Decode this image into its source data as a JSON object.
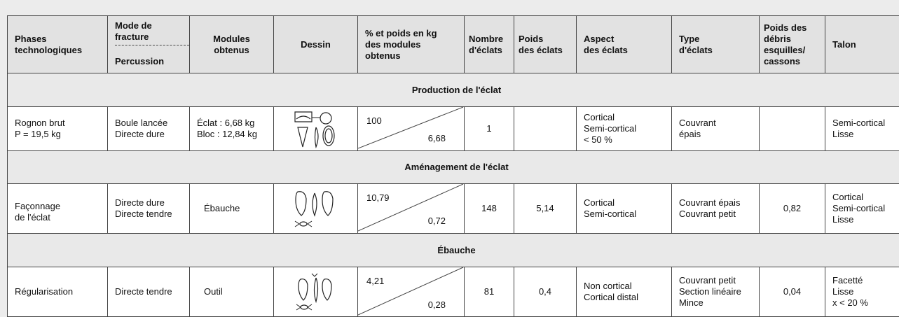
{
  "header": {
    "phases": [
      "Phases",
      "technologiques"
    ],
    "mode": [
      "Mode de",
      "fracture"
    ],
    "percussion": "Percussion",
    "modules": [
      "Modules",
      "obtenus"
    ],
    "dessin": "Dessin",
    "pct": [
      "% et poids en kg",
      "des modules",
      "obtenus"
    ],
    "nombre": [
      "Nombre",
      "d'éclats"
    ],
    "poids": [
      "Poids",
      "des éclats"
    ],
    "aspect": [
      "Aspect",
      "des éclats"
    ],
    "type": [
      "Type",
      "d'éclats"
    ],
    "debris": [
      "Poids des",
      "débris",
      "esquilles/",
      "cassons"
    ],
    "talon": "Talon"
  },
  "sections": [
    {
      "title": "Production de l'éclat",
      "row": {
        "phase": [
          "Rognon brut",
          "P = 19,5 kg"
        ],
        "mode": [
          "Boule lancée",
          "Directe dure"
        ],
        "modules": [
          "Éclat : 6,68 kg",
          "Bloc : 12,84 kg"
        ],
        "pct_top": "100",
        "pct_bottom": "6,68",
        "nombre": "1",
        "aspect": [
          "Cortical",
          "Semi-cortical",
          "< 50 %"
        ],
        "type": [
          "Couvrant",
          "épais"
        ],
        "talon": [
          "Semi-cortical",
          "Lisse"
        ]
      }
    },
    {
      "title": "Aménagement de l'éclat",
      "row": {
        "phase": [
          "Façonnage",
          "de l'éclat"
        ],
        "mode": [
          "Directe dure",
          "Directe tendre"
        ],
        "modules": [
          "Ébauche"
        ],
        "pct_top": "10,79",
        "pct_bottom": "0,72",
        "nombre": "148",
        "poids": "5,14",
        "aspect": [
          "Cortical",
          "Semi-cortical"
        ],
        "type": [
          "Couvrant épais",
          "Couvrant petit"
        ],
        "debris": "0,82",
        "talon": [
          "Cortical",
          "Semi-cortical",
          "Lisse"
        ]
      }
    },
    {
      "title": "Ébauche",
      "row": {
        "phase": [
          "Régularisation"
        ],
        "mode": [
          "Directe tendre"
        ],
        "modules": [
          "Outil"
        ],
        "pct_top": "4,21",
        "pct_bottom": "0,28",
        "nombre": "81",
        "poids": "0,4",
        "aspect": [
          "Non cortical",
          "Cortical distal"
        ],
        "type": [
          "Couvrant petit",
          "Section linéaire",
          "Mince"
        ],
        "debris": "0,04",
        "talon": [
          "Facetté",
          "Lisse",
          "x < 20 %"
        ]
      }
    }
  ]
}
